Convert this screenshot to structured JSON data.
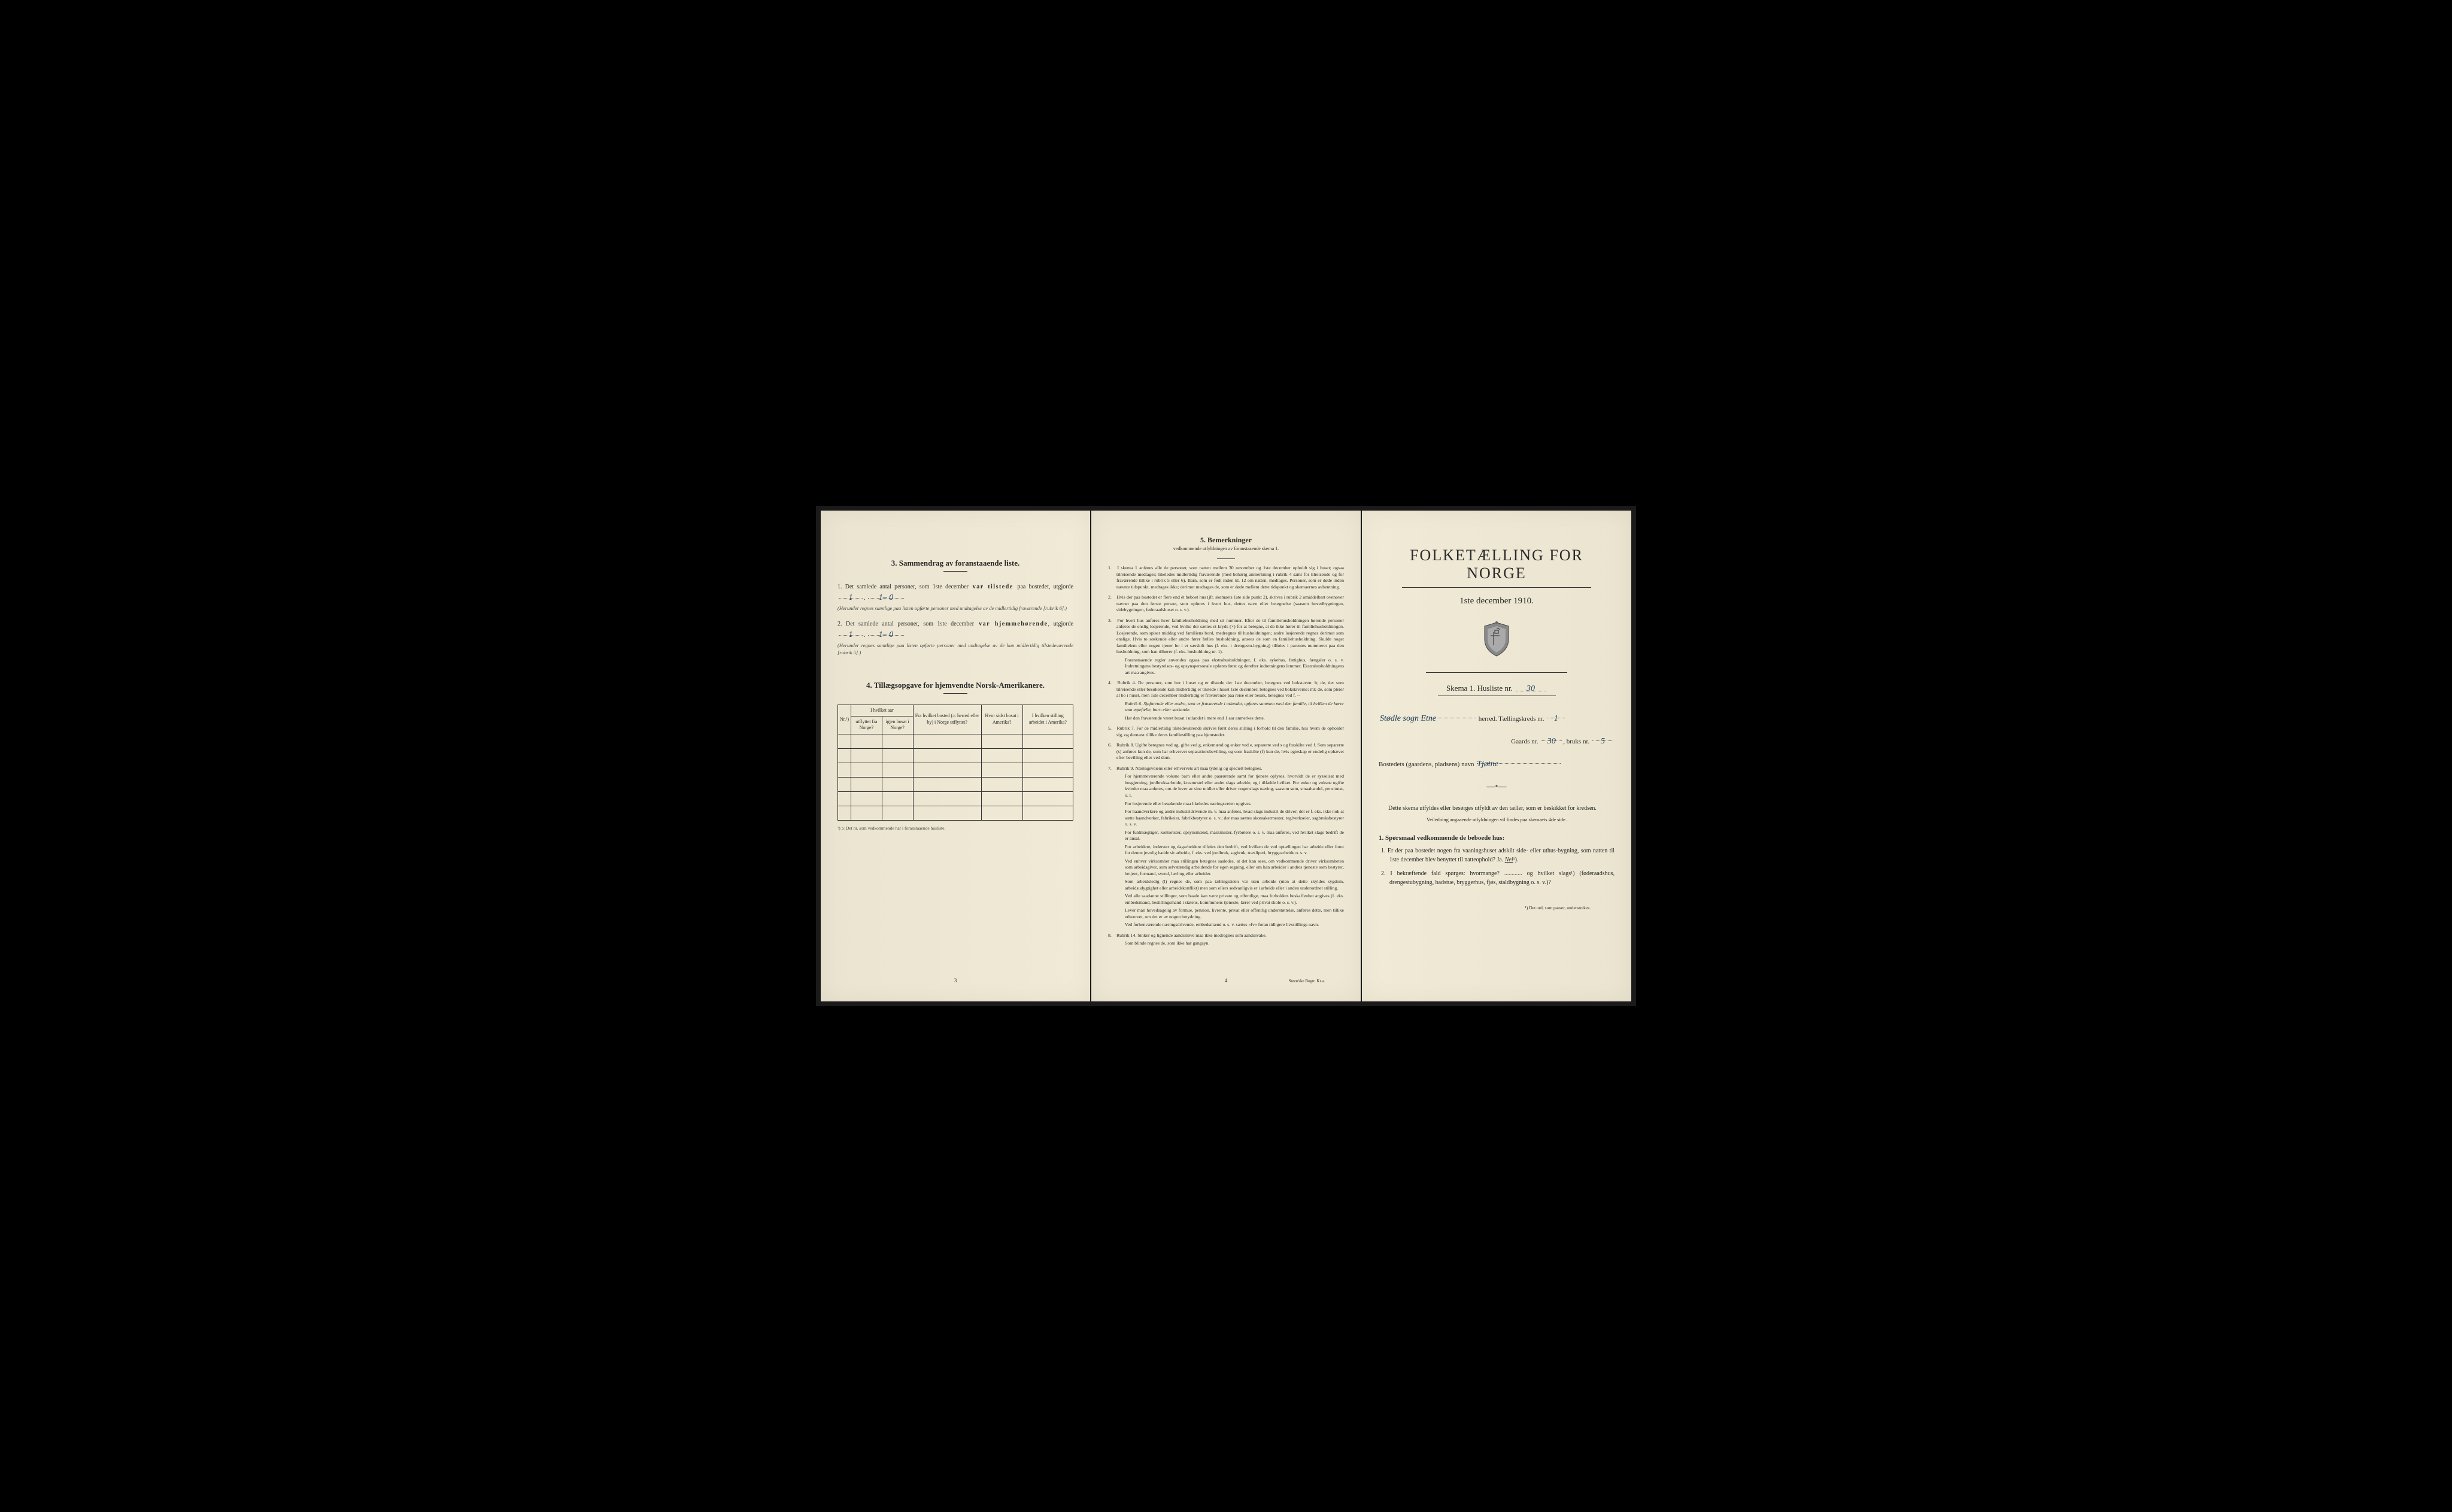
{
  "colors": {
    "paper": "#f0ead6",
    "paper_left": "#eae4d0",
    "paper_mid": "#ede7d3",
    "ink": "#2a2a2a",
    "handwriting": "#1a3a5a",
    "background": "#000000"
  },
  "left": {
    "section3_title": "3.   Sammendrag av foranstaaende liste.",
    "item1_pre": "1.  Det samlede antal personer, som 1ste december",
    "item1_bold": " var tilstede ",
    "item1_post": "paa bostedet, utgjorde",
    "item1_hand1": "1",
    "item1_hand2": "1– 0",
    "item1_note": "(Herunder regnes samtlige paa listen opførte personer med undtagelse av de midlertidig fraværende [rubrik 6].)",
    "item2_pre": "2.  Det samlede antal personer, som 1ste december",
    "item2_bold": " var hjemmehørende",
    "item2_post": ", utgjorde",
    "item2_hand1": "1",
    "item2_hand2": "1– 0",
    "item2_note": "(Herunder regnes samtlige paa listen opførte personer med undtagelse av de kun midlertidig tilstedeværende [rubrik 5].)",
    "section4_title": "4.   Tillægsopgave for hjemvendte Norsk-Amerikanere.",
    "table": {
      "col1": "Nr.¹)",
      "group1": "I hvilket aar",
      "col2a": "utflyttet fra Norge?",
      "col2b": "igjen bosat i Norge?",
      "col3": "Fra hvilket bosted (ɔ: herred eller by) i Norge utflyttet?",
      "col4": "Hvor sidst bosat i Amerika?",
      "col5": "I hvilken stilling arbeidet i Amerika?",
      "rows": 6
    },
    "table_footnote": "¹) ɔ: Det nr. som vedkommende har i foranstaaende husliste.",
    "page_num": "3"
  },
  "middle": {
    "title": "5.   Bemerkninger",
    "subtitle": "vedkommende utfyldningen av foranstaaende skema 1.",
    "items": [
      {
        "n": "1.",
        "t": "I skema 1 anføres alle de personer, som natten mellem 30 november og 1ste december opholdt sig i huset; ogsaa tilreisende medtages; likeledes midlertidig fraværende (med behørig anmerkning i rubrik 4 samt for tilreisende og for fraværende tillike i rubrik 5 eller 6). Barn, som er født inden kl. 12 om natten, medtages. Personer, som er døde inden nævnte tidspunkt, medtages ikke; derimot medtages de, som er døde mellem dette tidspunkt og skemaernes avhentning."
      },
      {
        "n": "2.",
        "t": "Hvis der paa bostedet er flere end ét beboet hus (jfr. skemaets 1ste side punkt 2), skrives i rubrik 2 umiddelbart ovenover navnet paa den første person, som opføres i hvert hus, dettes navn eller betegnelse (saasom hovedbygningen, sidebygningen, føderaadshuset o. s. v.)."
      },
      {
        "n": "3.",
        "t": "For hvert hus anføres hver familiehusholdning med sit nummer. Efter de til familiehusholdningen hørende personer anføres de enslig losjerende, ved hvilke der sættes et kryds (×) for at betegne, at de ikke hører til familiehusholdningen. Losjerende, som spiser middag ved familiens bord, medregnes til husholdningen; andre losjerende regnes derimot som enslige. Hvis to søskende eller andre fører fælles husholdning, ansees de som en familiehusholdning. Skulde noget familielem eller nogen tjener bo i et særskilt hus (f. eks. i drengestu-bygning) tilføies i parentes nummeret paa den husholdning, som han tilhører (f. eks. husholdning nr. 1).",
        "extra": "Foranstaaende regler anvendes ogsaa paa ekstrahusholdninger, f. eks. sykehus, fattighus, fængsler o. s. v. Indretningens bestyrelses- og opsynspersonale opføres først og derefter indretningens lemmer. Ekstrahusholdningens art maa angives."
      },
      {
        "n": "4.",
        "t": "Rubrik 4. De personer, som bor i huset og er tilstede der 1ste december, betegnes ved bokstaven: b; de, der som tilreisende eller besøkende kun midlertidig er tilstede i huset 1ste december, betegnes ved bokstaverne: mt; de, som pleier at bo i huset, men 1ste december midlertidig er fraværende paa reise eller besøk, betegnes ved f. --",
        "rubrik": "Rubrik 6. Sjøfarende eller andre, som er fraværende i utlandet, opføres sammen med den familie, til hvilken de hører som egtefælle, barn eller søskende.",
        "extra": "Har den fraværende været bosat i utlandet i mere end 1 aar anmerkes dette."
      },
      {
        "n": "5.",
        "t": "Rubrik 7. For de midlertidig tilstedeværende skrives først deres stilling i forhold til den familie, hos hvem de opholder sig, og dernæst tillike deres familiestilling paa hjemstedet."
      },
      {
        "n": "6.",
        "t": "Rubrik 8. Ugifte betegnes ved ug, gifte ved g, enkemænd og enker ved e, separerte ved s og fraskilte ved f. Som separerte (s) anføres kun de, som har erhvervet separationsbevilling, og som fraskilte (f) kun de, hvis egteskap er endelig ophævet efter bevilling eller ved dom."
      },
      {
        "n": "7.",
        "t": "Rubrik 9. Næringsveiens eller erhvervets art maa tydelig og specielt betegnes.",
        "paragraphs": [
          "For hjemmeværende voksne barn eller andre paarørende samt for tjenere oplyses, hvorvidt de er sysselsat med husgjerning, jordbruksarbeide, kreaturstel eller andet slags arbeide, og i tilfælde hvilket. For enker og voksne ugifte kvinder maa anføres, om de lever av sine midler eller driver nogenslags næring, saasom søm, smaahandel, pensionat, o. l.",
          "For losjerende eller besøkende maa likeledes næringsveien opgives.",
          "For haandverkere og andre industridrivende m. v. maa anføres, hvad slags industri de driver; det er f. eks. ikke nok at sætte haandverker, fabrikeier, fabrikbestyrer o. s. v.; der maa sættes skomakermester, teglverkseier, sagbruksbestyrer o. s. v.",
          "For fuldmægtiger, kontorister, opsynsmænd, maskinister, fyrbøtere o. s. v. maa anføres, ved hvilket slags bedrift de er ansat.",
          "For arbeidere, inderster og dagarbeidere tilføies den bedrift, ved hvilken de ved optællingen har arbeide eller forut for denne jevnlig hadde sit arbeide, f. eks. ved jordbruk, sagbruk, træsliperi, bryggearbeide o. s. v.",
          "Ved enhver virksomhet maa stillingen betegnes saaledes, at det kan sees, om vedkommende driver virksomheten som arbeidsgiver, som selvstændig arbeidende for egen regning, eller om han arbeider i andres tjeneste som bestyrer, betjent, formand, svend, lærling eller arbeider.",
          "Som arbeidsledig (l) regnes de, som paa tællingstiden var uten arbeide (uten at dette skyldes sygdom, arbeidsudygtighet eller arbeidskonflikt) men som ellers sedvanligvis er i arbeide eller i anden underordnet stilling.",
          "Ved alle saadanne stillinger, som baade kan være private og offentlige, maa forholdets beskaffenhet angives (f. eks. embedsmand, bestillingsmand i statens, kommunens tjeneste, lærer ved privat skole o. s. v.).",
          "Lever man hovedsagelig av formue, pension, livrente, privat eller offentlig understøttelse, anføres dette, men tillike erhvervet, om det er av nogen betydning.",
          "Ved forhenværende næringsdrivende, embedsmænd o. s. v. sættes «fv» foran tidligere livsstillings navn."
        ]
      },
      {
        "n": "8.",
        "t": "Rubrik 14. Sinker og lignende aandssløve maa ikke medregnes som aandssvake.",
        "extra": "Som blinde regnes de, som ikke har gangsyn."
      }
    ],
    "page_num": "4",
    "printer": "Steen'ske Bogtr. Kr.a."
  },
  "right": {
    "title": "FOLKETÆLLING FOR NORGE",
    "subtitle": "1ste december 1910.",
    "skema_pre": "Skema 1.  Husliste nr.",
    "skema_hand": "30",
    "herred_hand": "Stødle sogn  Etne",
    "herred_label": "herred.   Tællingskreds nr.",
    "kreds_hand": "1",
    "gaards_label": "Gaards nr.",
    "gaards_hand": "30",
    "bruks_label": " bruks nr.",
    "bruks_hand": "5",
    "bosted_label": "Bostedets (gaardens, pladsens) navn",
    "bosted_hand": "Tjøtne",
    "instruction": "Dette skema utfyldes eller besørges utfyldt av den tæller, som er beskikket for kredsen.",
    "small_instruction": "Veiledning angaaende utfyldningen vil findes paa skemaets 4de side.",
    "q_heading": "1. Spørsmaal vedkommende de beboede hus:",
    "q1": "1.  Er der paa bostedet nogen fra vaaningshuset adskilt side- eller uthus-bygning, som natten til 1ste december blev benyttet til natteophold?   Ja.   ",
    "q1_answer": "Nei",
    "q1_sup": "¹).",
    "q2": "2.  I bekræftende fald spørges: hvormange? ............ og hvilket slags¹) (føderaadshus, drengestubygning, badstue, bryggerhus, fjøs, staldbygning o. s. v.)?",
    "footnote": "¹) Det ord, som passer, understrekes."
  }
}
